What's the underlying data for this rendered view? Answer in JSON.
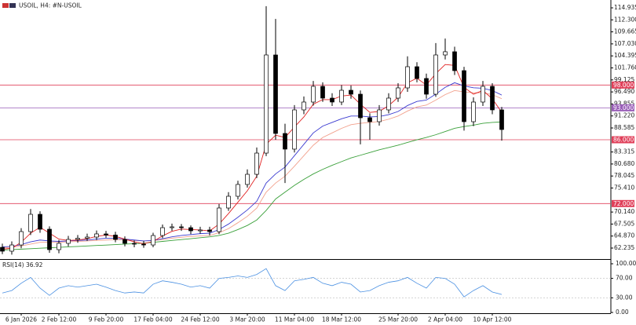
{
  "chart_data": [
    {
      "type": "candlestick",
      "title": "USOIL, H4: #N-USOIL",
      "categories": [
        null,
        null,
        "6 Jan 2026",
        null,
        null,
        null,
        "2 Feb 12:00",
        null,
        null,
        null,
        null,
        "9 Feb 20:00",
        null,
        null,
        null,
        null,
        "17 Feb 04:00",
        null,
        null,
        null,
        null,
        "24 Feb 12:00",
        null,
        null,
        null,
        null,
        "3 Mar 20:00",
        null,
        null,
        null,
        null,
        "11 Mar 04:00",
        null,
        null,
        null,
        null,
        "18 Mar 12:00",
        null,
        null,
        null,
        null,
        null,
        "25 Mar 20:00",
        null,
        null,
        null,
        null,
        "2 Apr 04:00",
        null,
        null,
        null,
        null,
        "10 Apr 12:00",
        null
      ],
      "ohlc": [
        [
          62.4,
          63.2,
          60.9,
          61.55
        ],
        [
          61.55,
          63.7,
          60.8,
          62.92
        ],
        [
          62.92,
          66.6,
          62.2,
          65.85
        ],
        [
          65.85,
          70.8,
          65.1,
          69.64
        ],
        [
          69.64,
          70.3,
          65.6,
          66.37
        ],
        [
          66.37,
          67.0,
          61.2,
          61.89
        ],
        [
          61.89,
          64.0,
          61.1,
          63.27
        ],
        [
          63.27,
          64.9,
          62.6,
          64.13
        ],
        [
          64.13,
          65.1,
          63.4,
          64.4
        ],
        [
          64.4,
          65.4,
          63.8,
          64.65
        ],
        [
          64.65,
          66.1,
          64.0,
          65.34
        ],
        [
          65.34,
          66.0,
          64.5,
          65.1
        ],
        [
          65.1,
          65.8,
          63.5,
          64.13
        ],
        [
          64.13,
          64.8,
          62.6,
          63.27
        ],
        [
          63.27,
          63.9,
          62.4,
          63.1
        ],
        [
          63.1,
          63.8,
          62.3,
          62.92
        ],
        [
          62.92,
          65.6,
          62.4,
          64.99
        ],
        [
          64.99,
          67.4,
          64.4,
          66.71
        ],
        [
          66.71,
          67.6,
          66.0,
          66.89
        ],
        [
          66.89,
          67.5,
          66.0,
          66.71
        ],
        [
          66.71,
          67.2,
          65.3,
          66.02
        ],
        [
          66.02,
          66.9,
          65.4,
          66.2
        ],
        [
          66.2,
          66.9,
          65.0,
          65.85
        ],
        [
          65.85,
          71.9,
          65.3,
          71.02
        ],
        [
          71.02,
          74.5,
          70.4,
          73.6
        ],
        [
          73.6,
          77.0,
          72.9,
          76.19
        ],
        [
          76.19,
          79.5,
          75.5,
          78.42
        ],
        [
          78.42,
          84.3,
          77.6,
          83.07
        ],
        [
          83.07,
          115.3,
          82.4,
          104.6
        ],
        [
          104.6,
          112.5,
          86.0,
          87.38
        ],
        [
          87.38,
          89.5,
          76.5,
          83.94
        ],
        [
          83.94,
          93.6,
          83.2,
          92.55
        ],
        [
          92.55,
          95.5,
          91.6,
          94.27
        ],
        [
          94.27,
          98.9,
          93.5,
          97.71
        ],
        [
          97.71,
          98.6,
          94.3,
          95.13
        ],
        [
          95.13,
          96.2,
          93.4,
          94.27
        ],
        [
          94.27,
          98.0,
          93.6,
          96.85
        ],
        [
          96.85,
          97.9,
          95.0,
          95.99
        ],
        [
          95.99,
          96.8,
          85.0,
          90.82
        ],
        [
          90.82,
          91.8,
          86.0,
          89.96
        ],
        [
          89.96,
          93.6,
          89.1,
          92.55
        ],
        [
          92.55,
          96.2,
          91.8,
          95.13
        ],
        [
          95.13,
          98.4,
          94.3,
          97.37
        ],
        [
          97.37,
          104.3,
          96.5,
          102.02
        ],
        [
          102.02,
          103.0,
          98.6,
          99.44
        ],
        [
          99.44,
          100.5,
          95.0,
          95.99
        ],
        [
          95.99,
          107.2,
          95.4,
          104.6
        ],
        [
          104.6,
          108.2,
          103.6,
          105.3
        ],
        [
          105.3,
          106.4,
          100.2,
          101.16
        ],
        [
          101.16,
          102.0,
          88.0,
          89.96
        ],
        [
          89.96,
          95.3,
          89.0,
          94.27
        ],
        [
          94.27,
          98.9,
          93.4,
          97.71
        ],
        [
          97.71,
          98.4,
          91.6,
          92.55
        ],
        [
          92.55,
          93.2,
          85.8,
          88.24
        ]
      ],
      "up_color": "#ffffff",
      "down_color": "#000000",
      "series": [
        {
          "color": "#3aa03a",
          "values": [
            61.8,
            61.9,
            62.0,
            62.1,
            62.2,
            62.3,
            62.4,
            62.5,
            62.6,
            62.7,
            62.8,
            62.9,
            63.0,
            63.1,
            63.2,
            63.3,
            63.5,
            63.7,
            63.9,
            64.1,
            64.3,
            64.5,
            64.7,
            65.0,
            65.5,
            66.3,
            67.2,
            68.4,
            70.5,
            73.0,
            74.5,
            76.0,
            77.3,
            78.5,
            79.5,
            80.4,
            81.2,
            82.0,
            82.6,
            83.2,
            83.8,
            84.3,
            84.8,
            85.4,
            86.0,
            86.5,
            87.1,
            87.8,
            88.5,
            88.9,
            89.2,
            89.6,
            89.8,
            89.9
          ]
        },
        {
          "color": "#f2a08c",
          "values": [
            62.3,
            62.4,
            62.7,
            63.1,
            63.5,
            63.5,
            63.5,
            63.6,
            63.7,
            63.8,
            63.9,
            64.0,
            64.1,
            64.0,
            63.9,
            63.8,
            63.9,
            64.1,
            64.4,
            64.6,
            64.8,
            64.9,
            65.0,
            65.6,
            66.5,
            67.8,
            69.2,
            71.0,
            74.5,
            76.5,
            78.0,
            80.2,
            82.5,
            84.8,
            86.5,
            87.5,
            88.5,
            89.3,
            89.6,
            89.8,
            90.0,
            90.5,
            91.2,
            92.3,
            93.2,
            93.6,
            94.7,
            95.9,
            96.8,
            96.5,
            96.3,
            96.3,
            95.9,
            95.0
          ]
        },
        {
          "color": "#3a3ad0",
          "values": [
            62.5,
            62.6,
            63.0,
            63.6,
            64.0,
            63.8,
            63.7,
            63.8,
            63.9,
            64.0,
            64.2,
            64.4,
            64.4,
            64.2,
            64.0,
            63.8,
            63.9,
            64.3,
            64.7,
            65.0,
            65.2,
            65.4,
            65.5,
            66.3,
            67.5,
            69.0,
            70.6,
            72.5,
            76.5,
            78.5,
            80.0,
            82.5,
            85.0,
            87.5,
            89.0,
            89.8,
            90.6,
            91.2,
            91.2,
            91.0,
            91.1,
            91.5,
            92.2,
            93.5,
            94.4,
            94.7,
            96.0,
            97.5,
            98.5,
            97.8,
            97.4,
            97.3,
            96.8,
            95.8
          ]
        },
        {
          "color": "#e02020",
          "values": [
            62.0,
            62.2,
            63.5,
            65.5,
            66.8,
            65.5,
            64.2,
            63.9,
            64.0,
            64.3,
            64.8,
            65.1,
            64.8,
            64.2,
            63.6,
            63.2,
            63.7,
            64.9,
            65.9,
            66.4,
            66.3,
            66.2,
            66.0,
            67.5,
            69.8,
            72.3,
            74.8,
            78.0,
            85.0,
            87.0,
            86.5,
            88.8,
            91.0,
            93.8,
            94.8,
            94.8,
            95.6,
            95.8,
            93.8,
            92.0,
            92.2,
            93.5,
            95.3,
            98.5,
            99.5,
            98.0,
            100.5,
            102.5,
            102.3,
            97.5,
            96.0,
            96.8,
            95.0,
            92.0
          ]
        }
      ],
      "levels": [
        {
          "value": 98,
          "label": "98.000",
          "color": "#e0405a"
        },
        {
          "value": 93,
          "label": "93.000",
          "color": "#9a5fb8"
        },
        {
          "value": 86,
          "label": "86.000",
          "color": "#e0405a"
        },
        {
          "value": 72,
          "label": "72.000",
          "color": "#e0405a"
        }
      ],
      "ylim": [
        60.17,
        116.31
      ],
      "yticks": [
        114.935,
        {
          "value": 112.3,
          "label": "112.300"
        },
        109.665,
        {
          "value": 107.03,
          "label": "107.030"
        },
        104.395,
        {
          "value": 101.76,
          "label": "101.760"
        },
        99.125,
        {
          "value": 96.49,
          "label": "96.490"
        },
        93.855,
        {
          "value": 91.22,
          "label": "91.220"
        },
        88.585,
        83.315,
        {
          "value": 80.68,
          "label": "80.680"
        },
        78.045,
        {
          "value": 75.41,
          "label": "75.410"
        },
        {
          "value": 70.14,
          "label": "70.140"
        },
        67.505,
        {
          "value": 64.87,
          "label": "64.870"
        },
        62.235
      ]
    },
    {
      "type": "line",
      "title": "RSI(14) 36.92",
      "color": "#4a90e2",
      "values": [
        40,
        45,
        60,
        72,
        50,
        35,
        50,
        55,
        52,
        55,
        58,
        52,
        45,
        40,
        42,
        40,
        58,
        65,
        62,
        58,
        52,
        55,
        50,
        70,
        72,
        75,
        72,
        78,
        90,
        55,
        45,
        65,
        68,
        72,
        60,
        55,
        62,
        58,
        42,
        45,
        55,
        62,
        65,
        72,
        60,
        50,
        72,
        70,
        58,
        32,
        45,
        55,
        42,
        36.92
      ],
      "ylim": [
        0,
        100
      ],
      "yticks": [
        {
          "value": 100,
          "label": "100.00"
        },
        {
          "value": 70,
          "label": "70.00"
        },
        {
          "value": 30,
          "label": "30.00"
        },
        {
          "value": 0,
          "label": "0.00"
        }
      ],
      "grid_ticks": [
        1,
        2
      ]
    }
  ]
}
